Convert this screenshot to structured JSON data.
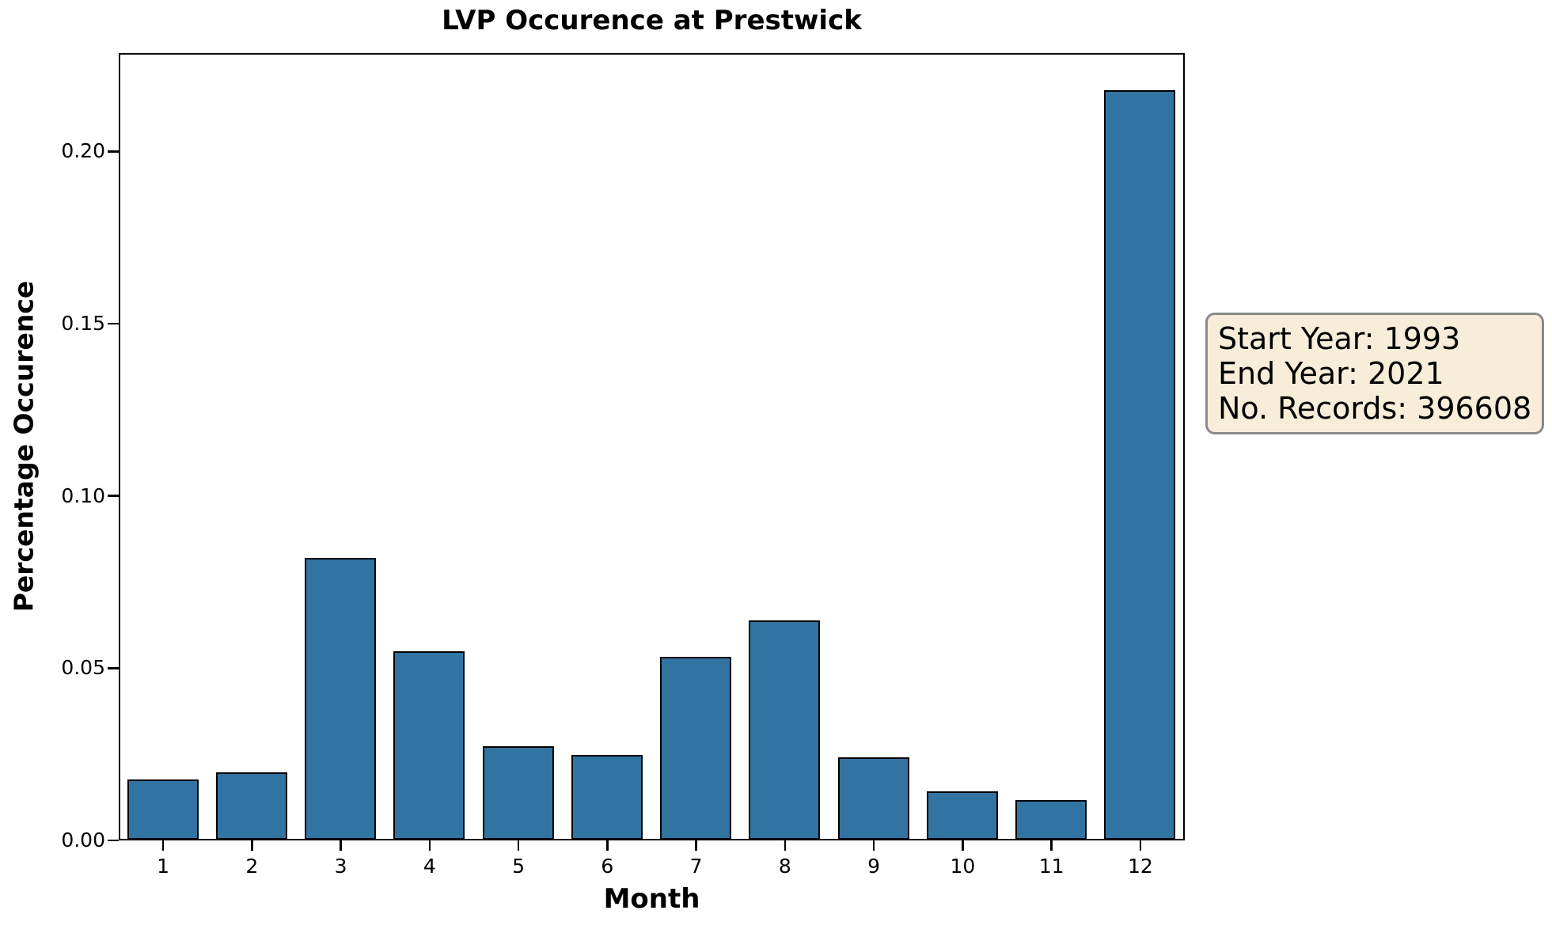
{
  "figure": {
    "title": "LVP Occurence at Prestwick",
    "xlabel": "Month",
    "ylabel": "Percentage Occurence"
  },
  "annotation": {
    "lines": [
      "Start Year: 1993",
      "End Year: 2021",
      "No. Records: 396608"
    ],
    "bg_color": "#f8edd8",
    "border_color": "#8a8a8a"
  },
  "chart_data": {
    "type": "bar",
    "title": "LVP Occurence at Prestwick",
    "xlabel": "Month",
    "ylabel": "Percentage Occurence",
    "categories": [
      "1",
      "2",
      "3",
      "4",
      "5",
      "6",
      "7",
      "8",
      "9",
      "10",
      "11",
      "12"
    ],
    "values": [
      0.0175,
      0.0196,
      0.082,
      0.0549,
      0.0273,
      0.0247,
      0.0533,
      0.0637,
      0.0241,
      0.0141,
      0.0116,
      0.2177
    ],
    "ylim": [
      0,
      0.2286
    ],
    "yticks": [
      {
        "value": 0.0,
        "label": "0.00"
      },
      {
        "value": 0.05,
        "label": "0.05"
      },
      {
        "value": 0.1,
        "label": "0.10"
      },
      {
        "value": 0.15,
        "label": "0.15"
      },
      {
        "value": 0.2,
        "label": "0.20"
      }
    ],
    "bar_color": "#3274a1",
    "bar_edge_color": "#000000",
    "grid": false,
    "legend": null,
    "background": "#ffffff"
  }
}
